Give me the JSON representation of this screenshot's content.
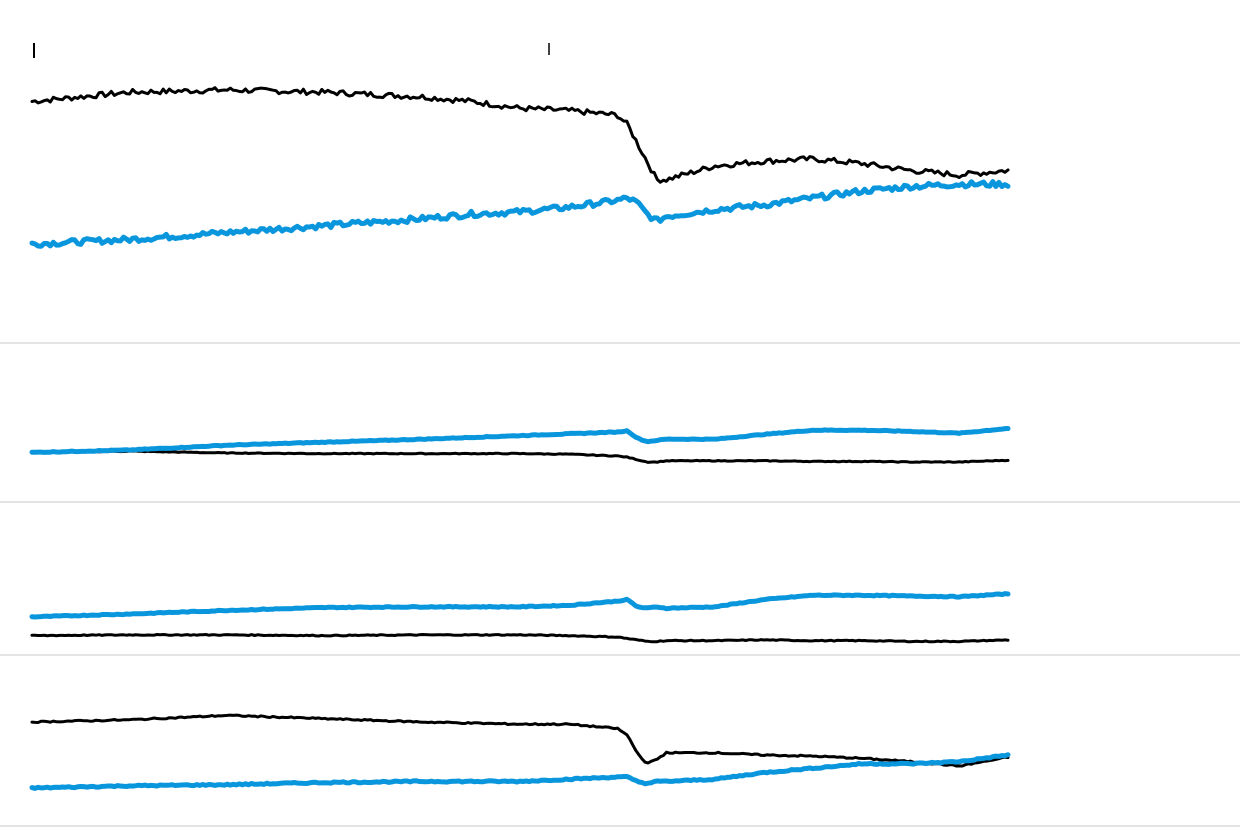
{
  "colors": {
    "series_a": "#000000",
    "series_b": "#0a96dc",
    "divider": "#c8c8c8",
    "background": "#ffffff"
  },
  "chart_data": [
    {
      "type": "line",
      "title": "",
      "xlabel": "",
      "ylabel": "",
      "grid": false,
      "legend": "none",
      "x": [
        0,
        10,
        20,
        30,
        40,
        45,
        50,
        55,
        60,
        61,
        62,
        63,
        64,
        65,
        70,
        75,
        80,
        85,
        90,
        95,
        100
      ],
      "ylim": [
        0,
        100
      ],
      "series": [
        {
          "color_key": "series_a",
          "values": [
            82,
            86,
            87,
            86,
            84,
            82,
            79,
            78,
            76,
            72,
            64,
            56,
            48,
            48,
            54,
            56,
            57,
            55,
            52,
            50,
            52
          ]
        },
        {
          "color_key": "series_b",
          "values": [
            20,
            22,
            25,
            28,
            31,
            33,
            34,
            36,
            39,
            40,
            38,
            33,
            30,
            32,
            35,
            37,
            40,
            43,
            45,
            46,
            46
          ]
        }
      ]
    },
    {
      "type": "line",
      "title": "",
      "xlabel": "",
      "ylabel": "",
      "grid": false,
      "legend": "none",
      "x": [
        0,
        10,
        20,
        30,
        40,
        50,
        55,
        60,
        61,
        62,
        63,
        64,
        65,
        70,
        75,
        80,
        85,
        90,
        95,
        100
      ],
      "ylim": [
        0,
        100
      ],
      "series": [
        {
          "color_key": "series_a",
          "values": [
            46,
            48,
            45,
            44,
            44,
            44,
            43,
            40,
            38,
            34,
            30,
            30,
            32,
            32,
            32,
            31,
            31,
            30,
            30,
            33
          ]
        },
        {
          "color_key": "series_b",
          "values": [
            46,
            50,
            58,
            63,
            68,
            74,
            77,
            80,
            82,
            70,
            64,
            66,
            68,
            68,
            76,
            83,
            83,
            81,
            78,
            86
          ]
        }
      ]
    },
    {
      "type": "line",
      "title": "",
      "xlabel": "",
      "ylabel": "",
      "grid": false,
      "legend": "none",
      "x": [
        0,
        10,
        20,
        30,
        40,
        50,
        55,
        60,
        61,
        62,
        63,
        64,
        65,
        70,
        75,
        80,
        85,
        90,
        95,
        100
      ],
      "ylim": [
        0,
        100
      ],
      "series": [
        {
          "color_key": "series_a",
          "values": [
            20,
            21,
            21,
            20,
            21,
            21,
            20,
            18,
            16,
            14,
            12,
            12,
            13,
            13,
            14,
            13,
            13,
            12,
            12,
            14
          ]
        },
        {
          "color_key": "series_b",
          "values": [
            46,
            50,
            55,
            59,
            60,
            60,
            62,
            68,
            70,
            60,
            58,
            60,
            58,
            60,
            70,
            76,
            76,
            75,
            74,
            78
          ]
        }
      ]
    },
    {
      "type": "line",
      "title": "",
      "xlabel": "",
      "ylabel": "",
      "grid": false,
      "legend": "none",
      "x": [
        0,
        10,
        20,
        30,
        40,
        50,
        55,
        60,
        61,
        62,
        63,
        64,
        65,
        70,
        75,
        80,
        85,
        90,
        95,
        100
      ],
      "ylim": [
        0,
        100
      ],
      "series": [
        {
          "color_key": "series_a",
          "values": [
            80,
            82,
            86,
            83,
            80,
            78,
            78,
            74,
            68,
            52,
            42,
            46,
            52,
            52,
            50,
            49,
            47,
            44,
            40,
            48
          ]
        },
        {
          "color_key": "series_b",
          "values": [
            20,
            22,
            23,
            25,
            26,
            26,
            28,
            30,
            30,
            26,
            24,
            26,
            26,
            28,
            34,
            38,
            42,
            42,
            44,
            50
          ]
        }
      ]
    }
  ]
}
